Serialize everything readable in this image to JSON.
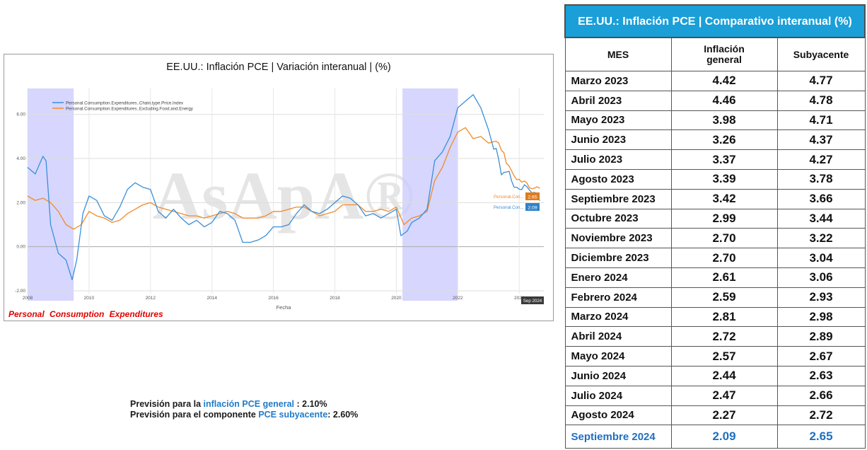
{
  "chart": {
    "title": "EE.UU.: Inflación PCE | Variación interanual | (%)",
    "caption": "Personal Consumption Expenditures",
    "watermark": "AsApA®",
    "legend": [
      "Personal.Consumption.Expenditures..Chain.type.Price.Index",
      "Personal.Consumption.Expenditures..Excluding.Food.and.Energy"
    ],
    "end_labels": {
      "headline_name": "Personal.Con...",
      "headline_value": "2.09",
      "core_name": "Personal.Con...",
      "core_value": "2.65",
      "date": "Sep 2024"
    }
  },
  "chart_data": {
    "type": "line",
    "title": "EE.UU.: Inflación PCE | Variación interanual | (%)",
    "xlabel": "Fecha",
    "ylabel": "",
    "xlim": [
      2008.0,
      2024.8
    ],
    "ylim": [
      -2.0,
      7.5
    ],
    "x_ticks": [
      "2008",
      "2010",
      "2012",
      "2014",
      "2016",
      "2018",
      "2020",
      "2022",
      "2024"
    ],
    "y_ticks": [
      "-2.00",
      "0.00",
      "2.00",
      "4.00",
      "6.00"
    ],
    "recession_bands": [
      [
        2008.0,
        2009.5
      ],
      [
        2020.2,
        2022.0
      ]
    ],
    "colors": {
      "headline": "#3a8fd9",
      "core": "#f08a2b",
      "band": "#c8c8ff"
    },
    "series": [
      {
        "name": "Personal.Consumption.Expenditures..Chain.type.Price.Index",
        "x": [
          2008.0,
          2008.25,
          2008.5,
          2008.6,
          2008.75,
          2009.0,
          2009.25,
          2009.45,
          2009.6,
          2009.8,
          2010.0,
          2010.25,
          2010.5,
          2010.75,
          2011.0,
          2011.25,
          2011.5,
          2011.75,
          2012.0,
          2012.25,
          2012.5,
          2012.75,
          2013.0,
          2013.25,
          2013.5,
          2013.75,
          2014.0,
          2014.25,
          2014.5,
          2014.75,
          2015.0,
          2015.25,
          2015.5,
          2015.75,
          2016.0,
          2016.25,
          2016.5,
          2016.75,
          2017.0,
          2017.25,
          2017.5,
          2017.75,
          2018.0,
          2018.25,
          2018.5,
          2018.75,
          2019.0,
          2019.25,
          2019.5,
          2019.75,
          2020.0,
          2020.15,
          2020.35,
          2020.5,
          2020.75,
          2021.0,
          2021.25,
          2021.5,
          2021.75,
          2022.0,
          2022.25,
          2022.5,
          2022.75,
          2023.0,
          2023.17,
          2023.25,
          2023.33,
          2023.42,
          2023.5,
          2023.58,
          2023.67,
          2023.75,
          2023.83,
          2023.92,
          2024.0,
          2024.08,
          2024.17,
          2024.25,
          2024.33,
          2024.42,
          2024.5,
          2024.58,
          2024.67
        ],
        "values": [
          3.6,
          3.3,
          4.1,
          3.9,
          1.0,
          -0.3,
          -0.6,
          -1.5,
          -0.6,
          1.5,
          2.3,
          2.1,
          1.4,
          1.2,
          1.8,
          2.6,
          2.9,
          2.7,
          2.6,
          1.6,
          1.3,
          1.7,
          1.3,
          1.0,
          1.2,
          0.9,
          1.1,
          1.6,
          1.5,
          1.2,
          0.2,
          0.2,
          0.3,
          0.5,
          0.9,
          0.9,
          1.0,
          1.5,
          1.9,
          1.6,
          1.5,
          1.7,
          2.0,
          2.3,
          2.2,
          1.9,
          1.4,
          1.5,
          1.3,
          1.5,
          1.7,
          0.5,
          0.7,
          1.1,
          1.3,
          1.7,
          3.9,
          4.3,
          5.0,
          6.3,
          6.6,
          6.9,
          6.3,
          5.3,
          4.42,
          4.46,
          3.98,
          3.26,
          3.37,
          3.39,
          3.42,
          2.99,
          2.7,
          2.7,
          2.61,
          2.59,
          2.81,
          2.72,
          2.57,
          2.44,
          2.47,
          2.27,
          2.09
        ]
      },
      {
        "name": "Personal.Consumption.Expenditures..Excluding.Food.and.Energy",
        "x": [
          2008.0,
          2008.25,
          2008.5,
          2008.75,
          2009.0,
          2009.25,
          2009.5,
          2009.75,
          2010.0,
          2010.25,
          2010.5,
          2010.75,
          2011.0,
          2011.25,
          2011.5,
          2011.75,
          2012.0,
          2012.25,
          2012.5,
          2012.75,
          2013.0,
          2013.25,
          2013.5,
          2013.75,
          2014.0,
          2014.25,
          2014.5,
          2014.75,
          2015.0,
          2015.25,
          2015.5,
          2015.75,
          2016.0,
          2016.25,
          2016.5,
          2016.75,
          2017.0,
          2017.25,
          2017.5,
          2017.75,
          2018.0,
          2018.25,
          2018.5,
          2018.75,
          2019.0,
          2019.25,
          2019.5,
          2019.75,
          2020.0,
          2020.25,
          2020.5,
          2020.75,
          2021.0,
          2021.25,
          2021.5,
          2021.75,
          2022.0,
          2022.25,
          2022.5,
          2022.75,
          2023.0,
          2023.17,
          2023.25,
          2023.33,
          2023.42,
          2023.5,
          2023.58,
          2023.67,
          2023.75,
          2023.83,
          2023.92,
          2024.0,
          2024.08,
          2024.17,
          2024.25,
          2024.33,
          2024.42,
          2024.5,
          2024.58,
          2024.67
        ],
        "values": [
          2.3,
          2.1,
          2.2,
          2.0,
          1.6,
          1.0,
          0.8,
          1.0,
          1.6,
          1.4,
          1.3,
          1.1,
          1.2,
          1.5,
          1.7,
          1.9,
          2.0,
          1.8,
          1.7,
          1.6,
          1.5,
          1.4,
          1.4,
          1.3,
          1.4,
          1.5,
          1.6,
          1.5,
          1.3,
          1.3,
          1.3,
          1.4,
          1.6,
          1.6,
          1.7,
          1.8,
          1.8,
          1.6,
          1.4,
          1.5,
          1.6,
          1.9,
          1.9,
          1.9,
          1.6,
          1.6,
          1.7,
          1.6,
          1.8,
          1.0,
          1.3,
          1.4,
          1.6,
          3.0,
          3.6,
          4.5,
          5.2,
          5.4,
          4.9,
          5.0,
          4.7,
          4.77,
          4.78,
          4.71,
          4.37,
          4.27,
          3.78,
          3.66,
          3.44,
          3.22,
          3.04,
          3.06,
          2.93,
          2.98,
          2.89,
          2.67,
          2.63,
          2.66,
          2.72,
          2.65
        ]
      }
    ]
  },
  "table": {
    "title": "EE.UU.: Inflación PCE | Comparativo interanual (%)",
    "headers": [
      "MES",
      "Inflación general",
      "Subyacente"
    ],
    "rows": [
      [
        "Marzo 2023",
        "4.42",
        "4.77"
      ],
      [
        "Abril 2023",
        "4.46",
        "4.78"
      ],
      [
        "Mayo 2023",
        "3.98",
        "4.71"
      ],
      [
        "Junio 2023",
        "3.26",
        "4.37"
      ],
      [
        "Julio 2023",
        "3.37",
        "4.27"
      ],
      [
        "Agosto 2023",
        "3.39",
        "3.78"
      ],
      [
        "Septiembre 2023",
        "3.42",
        "3.66"
      ],
      [
        "Octubre 2023",
        "2.99",
        "3.44"
      ],
      [
        "Noviembre 2023",
        "2.70",
        "3.22"
      ],
      [
        "Diciembre 2023",
        "2.70",
        "3.04"
      ],
      [
        "Enero 2024",
        "2.61",
        "3.06"
      ],
      [
        "Febrero 2024",
        "2.59",
        "2.93"
      ],
      [
        "Marzo 2024",
        "2.81",
        "2.98"
      ],
      [
        "Abril 2024",
        "2.72",
        "2.89"
      ],
      [
        "Mayo 2024",
        "2.57",
        "2.67"
      ],
      [
        "Junio 2024",
        "2.44",
        "2.63"
      ],
      [
        "Julio 2024",
        "2.47",
        "2.66"
      ],
      [
        "Agosto 2024",
        "2.27",
        "2.72"
      ],
      [
        "Septiembre 2024",
        "2.09",
        "2.65"
      ]
    ]
  },
  "forecast": {
    "line1_prefix": "Previsión para la ",
    "line1_highlight": "inflación PCE general",
    "line1_suffix": " : 2.10%",
    "line2_prefix": "Previsión para el componente ",
    "line2_highlight": "PCE subyacente",
    "line2_suffix": ":  2.60%"
  }
}
